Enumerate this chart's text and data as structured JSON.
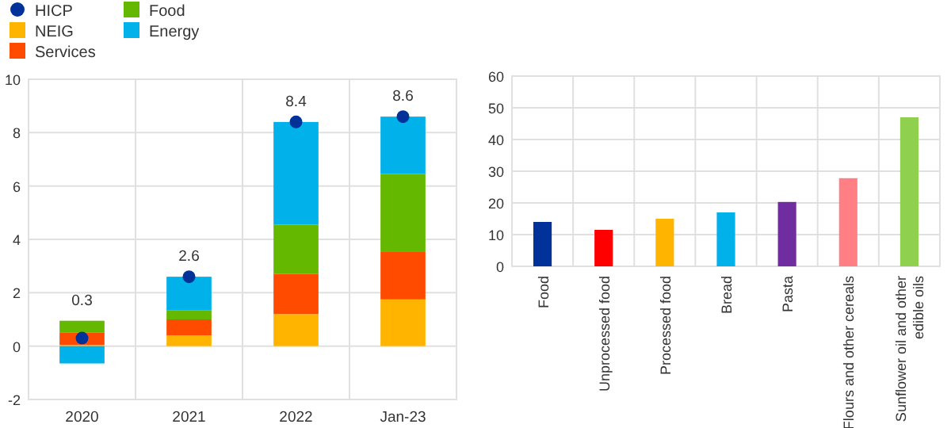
{
  "chart_data": [
    {
      "type": "bar",
      "stacked": true,
      "categories": [
        "2020",
        "2021",
        "2022",
        "Jan-23"
      ],
      "series": [
        {
          "name": "NEIG",
          "color": "#ffb400",
          "values": [
            0.05,
            0.4,
            1.2,
            1.75
          ]
        },
        {
          "name": "Services",
          "color": "#ff4b00",
          "values": [
            0.45,
            0.6,
            1.5,
            1.8
          ]
        },
        {
          "name": "Food",
          "color": "#65b800",
          "values": [
            0.45,
            0.35,
            1.85,
            2.9
          ]
        },
        {
          "name": "Energy",
          "color": "#00b1ea",
          "values": [
            -0.65,
            1.25,
            3.85,
            2.15
          ]
        },
        {
          "name": "HICP",
          "type": "scatter",
          "color": "#003299",
          "values": [
            0.3,
            2.6,
            8.4,
            8.6
          ],
          "value_labels": [
            "0.3",
            "2.6",
            "8.4",
            "8.6"
          ],
          "marker": "circle"
        }
      ],
      "ylim": [
        -2,
        10
      ],
      "yticks": [
        -2,
        0,
        2,
        4,
        6,
        8,
        10
      ],
      "grid": true,
      "legend": "top left"
    },
    {
      "type": "bar",
      "categories": [
        "Food",
        "Unprocessed food",
        "Processed food",
        "Bread",
        "Pasta",
        "Flours and other cereals",
        "Sunflower oil and other edible oils"
      ],
      "values": [
        14,
        11.5,
        15,
        17,
        20.3,
        27.8,
        47
      ],
      "colors": [
        "#003299",
        "#ff0000",
        "#ffb400",
        "#00b1ea",
        "#6f2da0",
        "#ff7f84",
        "#8fd14f"
      ],
      "ylim": [
        0,
        60
      ],
      "yticks": [
        0,
        10,
        20,
        30,
        40,
        50,
        60
      ],
      "grid": true
    }
  ]
}
